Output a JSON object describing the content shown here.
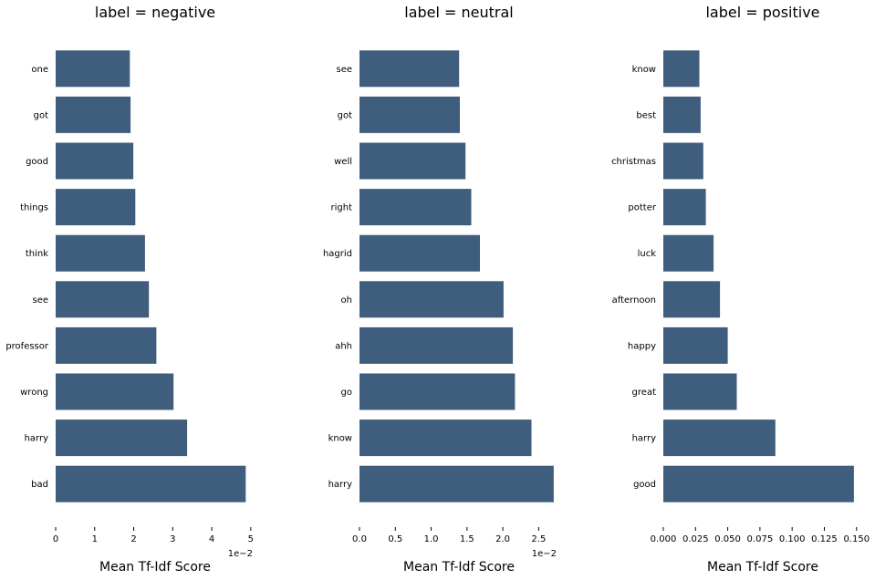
{
  "colors": {
    "bar": "#3f5e7d",
    "axis": "#000000"
  },
  "chart_data": [
    {
      "type": "bar",
      "orientation": "horizontal",
      "title": "label = negative",
      "xlabel": "Mean Tf-Idf Score",
      "ylabel": "",
      "offset_label": "1e−2",
      "xlim": [
        0,
        5.05
      ],
      "xticks": [
        0,
        1,
        2,
        3,
        4,
        5
      ],
      "xtick_labels": [
        "0",
        "1",
        "2",
        "3",
        "4",
        "5"
      ],
      "categories": [
        "one",
        "got",
        "good",
        "things",
        "think",
        "see",
        "professor",
        "wrong",
        "harry",
        "bad"
      ],
      "values": [
        1.9,
        1.92,
        1.99,
        2.04,
        2.29,
        2.39,
        2.58,
        3.02,
        3.37,
        4.87
      ]
    },
    {
      "type": "bar",
      "orientation": "horizontal",
      "title": "label = neutral",
      "xlabel": "Mean Tf-Idf Score",
      "ylabel": "",
      "offset_label": "1e−2",
      "xlim": [
        0,
        2.75
      ],
      "xticks": [
        0,
        0.5,
        1.0,
        1.5,
        2.0,
        2.5
      ],
      "xtick_labels": [
        "0.0",
        "0.5",
        "1.0",
        "1.5",
        "2.0",
        "2.5"
      ],
      "categories": [
        "see",
        "got",
        "well",
        "right",
        "hagrid",
        "oh",
        "ahh",
        "go",
        "know",
        "harry"
      ],
      "values": [
        1.39,
        1.4,
        1.48,
        1.56,
        1.68,
        2.01,
        2.14,
        2.17,
        2.4,
        2.71
      ]
    },
    {
      "type": "bar",
      "orientation": "horizontal",
      "title": "label = positive",
      "xlabel": "Mean Tf-Idf Score",
      "ylabel": "",
      "offset_label": "",
      "xlim": [
        0,
        0.153
      ],
      "xticks": [
        0,
        0.025,
        0.05,
        0.075,
        0.1,
        0.125,
        0.15
      ],
      "xtick_labels": [
        "0.000",
        "0.025",
        "0.050",
        "0.075",
        "0.100",
        "0.125",
        "0.150"
      ],
      "categories": [
        "know",
        "best",
        "christmas",
        "potter",
        "luck",
        "afternoon",
        "happy",
        "great",
        "harry",
        "good"
      ],
      "values": [
        0.028,
        0.029,
        0.031,
        0.033,
        0.039,
        0.044,
        0.05,
        0.057,
        0.087,
        0.148
      ]
    }
  ]
}
